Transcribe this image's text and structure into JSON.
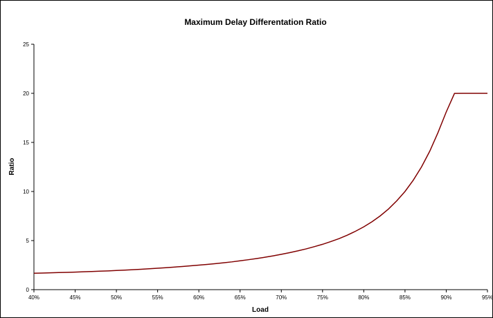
{
  "chart_data": {
    "type": "line",
    "title": "Maximum Delay Differentation Ratio",
    "xlabel": "Load",
    "ylabel": "Ratio",
    "x_ticks": [
      "40%",
      "45%",
      "50%",
      "55%",
      "60%",
      "65%",
      "70%",
      "75%",
      "80%",
      "85%",
      "90%",
      "95%"
    ],
    "y_ticks": [
      "0",
      "5",
      "10",
      "15",
      "20",
      "25"
    ],
    "xlim": [
      40,
      95
    ],
    "ylim": [
      0,
      25
    ],
    "grid": false,
    "legend": "none",
    "colors": {
      "line": "#800000",
      "axis": "#000000"
    },
    "series": [
      {
        "x": [
          40,
          41,
          42,
          43,
          44,
          45,
          46,
          47,
          48,
          49,
          50,
          51,
          52,
          53,
          54,
          55,
          56,
          57,
          58,
          59,
          60,
          61,
          62,
          63,
          64,
          65,
          66,
          67,
          68,
          69,
          70,
          71,
          72,
          73,
          74,
          75,
          76,
          77,
          78,
          79,
          80,
          81,
          82,
          83,
          84,
          85,
          86,
          87,
          88,
          89,
          90,
          91,
          92,
          93,
          94,
          95
        ],
        "values": [
          1.67,
          1.69,
          1.72,
          1.74,
          1.76,
          1.79,
          1.82,
          1.85,
          1.88,
          1.91,
          1.95,
          1.99,
          2.03,
          2.08,
          2.13,
          2.18,
          2.24,
          2.3,
          2.36,
          2.43,
          2.5,
          2.57,
          2.65,
          2.74,
          2.83,
          2.94,
          3.05,
          3.17,
          3.3,
          3.44,
          3.6,
          3.77,
          3.95,
          4.15,
          4.38,
          4.62,
          4.9,
          5.2,
          5.55,
          5.95,
          6.4,
          6.92,
          7.52,
          8.22,
          9.05,
          10.0,
          11.15,
          12.5,
          14.1,
          16.0,
          18.1,
          19.99,
          20.0,
          20.0,
          20.0,
          20.0
        ]
      }
    ]
  }
}
